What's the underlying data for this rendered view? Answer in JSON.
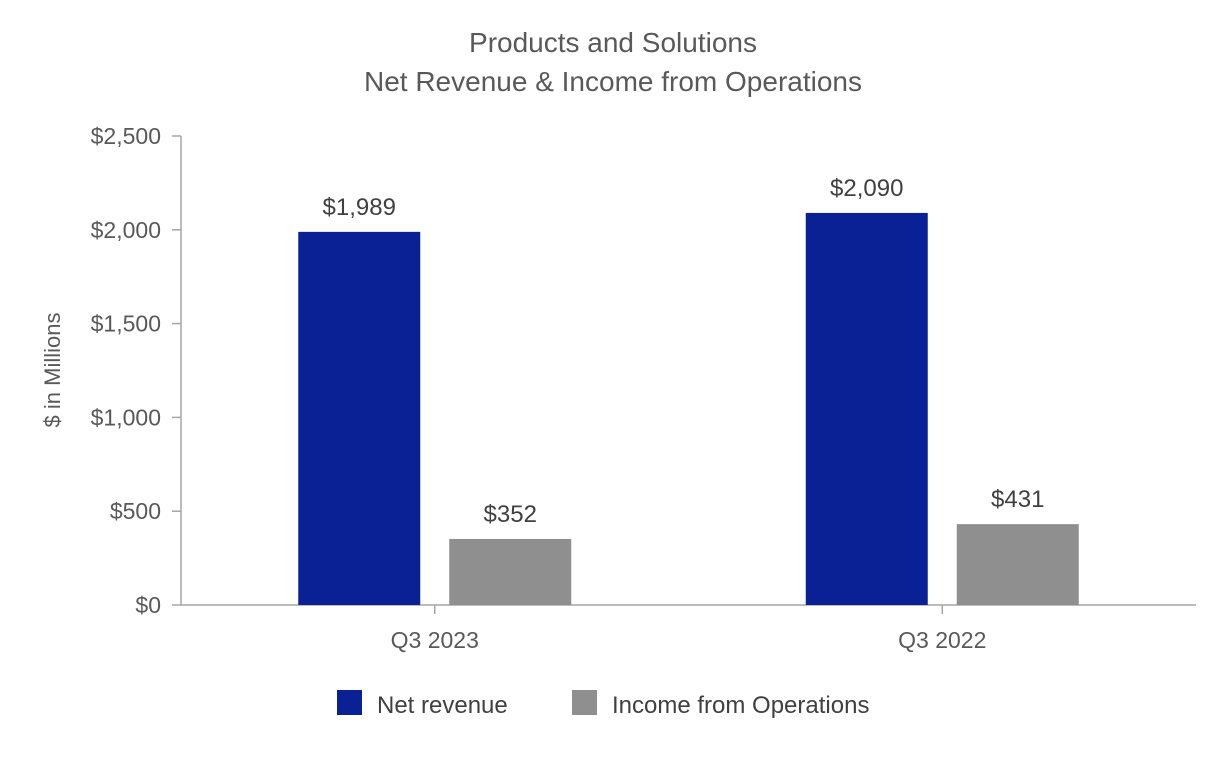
{
  "chart_data": {
    "type": "bar",
    "title": "Products and Solutions",
    "subtitle": "Net Revenue & Income from Operations",
    "xlabel": "",
    "ylabel": "$ in Millions",
    "ylim": [
      0,
      2500
    ],
    "y_ticks": [
      {
        "value": 0,
        "label": "$0"
      },
      {
        "value": 500,
        "label": "$500"
      },
      {
        "value": 1000,
        "label": "$1,000"
      },
      {
        "value": 1500,
        "label": "$1,500"
      },
      {
        "value": 2000,
        "label": "$2,000"
      },
      {
        "value": 2500,
        "label": "$2,500"
      }
    ],
    "grid": false,
    "legend_position": "bottom",
    "categories": [
      "Q3 2023",
      "Q3 2022"
    ],
    "series": [
      {
        "name": "Net revenue",
        "color": "#0a2196",
        "values": [
          1989,
          2090
        ],
        "labels": [
          "$1,989",
          "$2,090"
        ]
      },
      {
        "name": "Income from Operations",
        "color": "#8f8f8f",
        "values": [
          352,
          431
        ],
        "labels": [
          "$352",
          "$431"
        ]
      }
    ]
  }
}
